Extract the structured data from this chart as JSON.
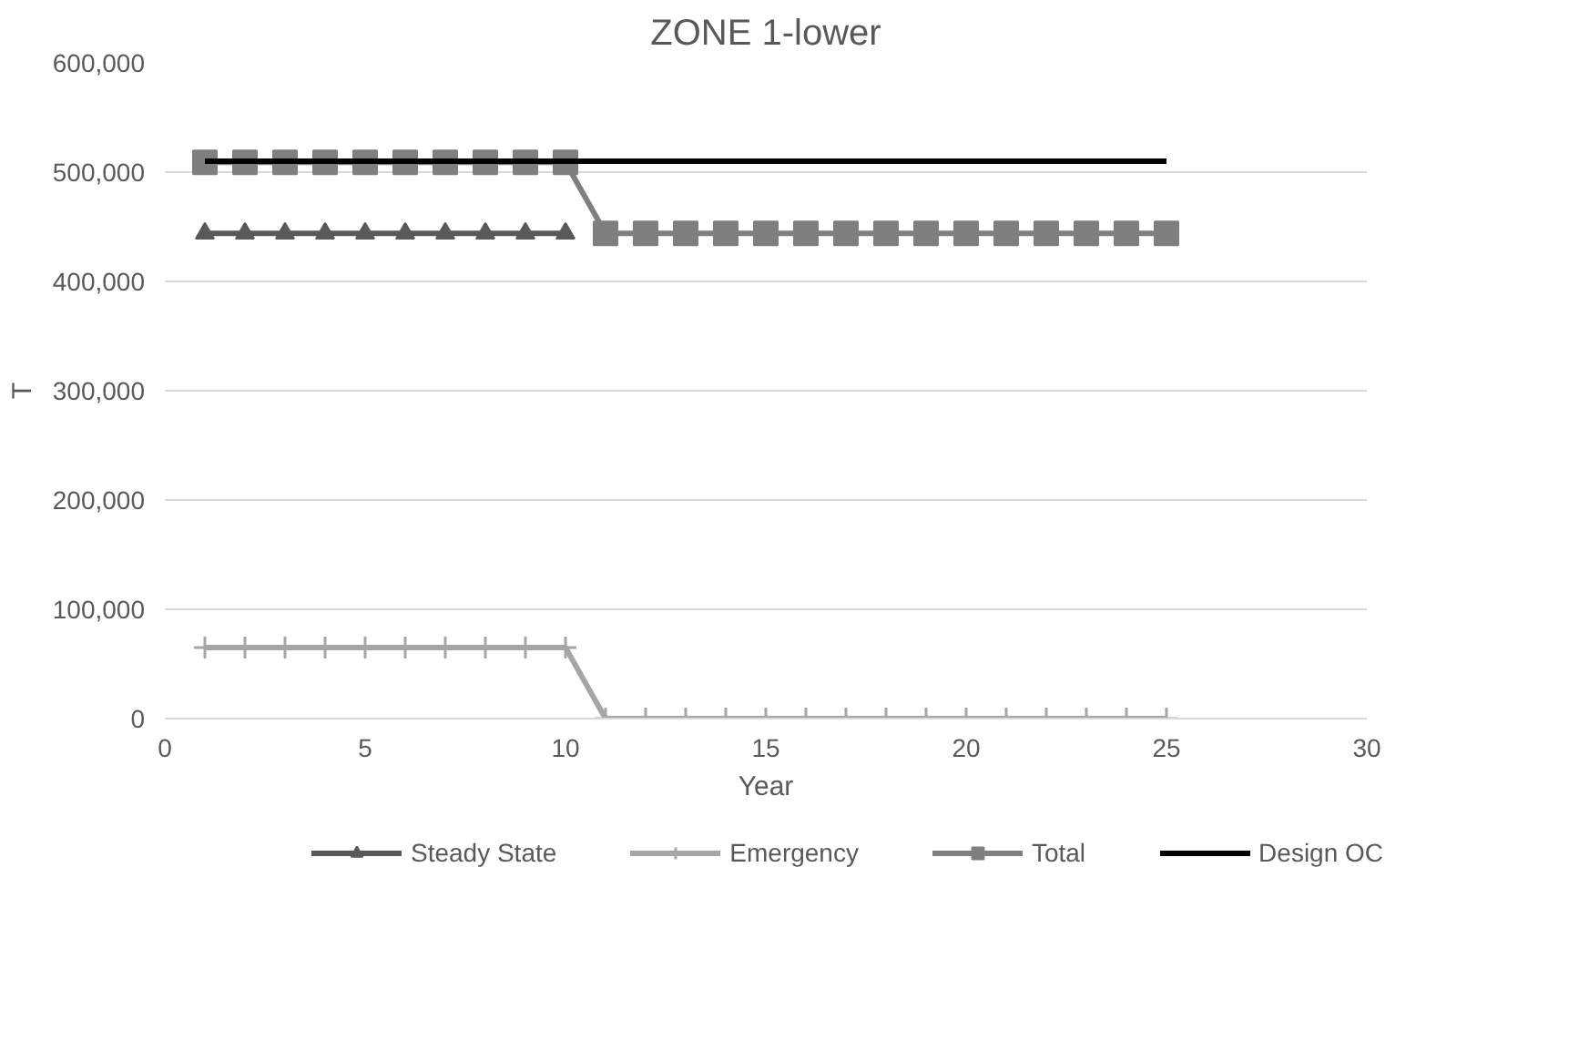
{
  "chart_data": {
    "type": "line",
    "title": "ZONE 1-lower",
    "xlabel": "Year",
    "ylabel": "T",
    "x": [
      1,
      2,
      3,
      4,
      5,
      6,
      7,
      8,
      9,
      10,
      11,
      12,
      13,
      14,
      15,
      16,
      17,
      18,
      19,
      20,
      21,
      22,
      23,
      24,
      25
    ],
    "series": [
      {
        "name": "Steady State",
        "color": "#595959",
        "marker": "triangle",
        "values": [
          444000,
          444000,
          444000,
          444000,
          444000,
          444000,
          444000,
          444000,
          444000,
          444000,
          null,
          null,
          null,
          null,
          null,
          null,
          null,
          null,
          null,
          null,
          null,
          null,
          null,
          null,
          null
        ]
      },
      {
        "name": "Emergency",
        "color": "#a6a6a6",
        "marker": "cross",
        "values": [
          65000,
          65000,
          65000,
          65000,
          65000,
          65000,
          65000,
          65000,
          65000,
          65000,
          0,
          0,
          0,
          0,
          0,
          0,
          0,
          0,
          0,
          0,
          0,
          0,
          0,
          0,
          0
        ]
      },
      {
        "name": "Total",
        "color": "#7f7f7f",
        "marker": "square",
        "values": [
          509000,
          509000,
          509000,
          509000,
          509000,
          509000,
          509000,
          509000,
          509000,
          509000,
          444000,
          444000,
          444000,
          444000,
          444000,
          444000,
          444000,
          444000,
          444000,
          444000,
          444000,
          444000,
          444000,
          444000,
          444000
        ]
      },
      {
        "name": "Design OC",
        "color": "#000000",
        "marker": "none",
        "values": [
          510000,
          510000,
          510000,
          510000,
          510000,
          510000,
          510000,
          510000,
          510000,
          510000,
          510000,
          510000,
          510000,
          510000,
          510000,
          510000,
          510000,
          510000,
          510000,
          510000,
          510000,
          510000,
          510000,
          510000,
          510000
        ]
      }
    ],
    "xlim": [
      0,
      30
    ],
    "xticks": [
      0,
      5,
      10,
      15,
      20,
      25,
      30
    ],
    "ylim": [
      0,
      600000
    ],
    "yticks": [
      {
        "value": 0,
        "label": "0"
      },
      {
        "value": 100000,
        "label": "100,000"
      },
      {
        "value": 200000,
        "label": "200,000"
      },
      {
        "value": 300000,
        "label": "300,000"
      },
      {
        "value": 400000,
        "label": "400,000"
      },
      {
        "value": 500000,
        "label": "500,000"
      },
      {
        "value": 600000,
        "label": "600,000"
      }
    ],
    "grid": "y",
    "legend": "bottom",
    "line_style": "solid"
  }
}
